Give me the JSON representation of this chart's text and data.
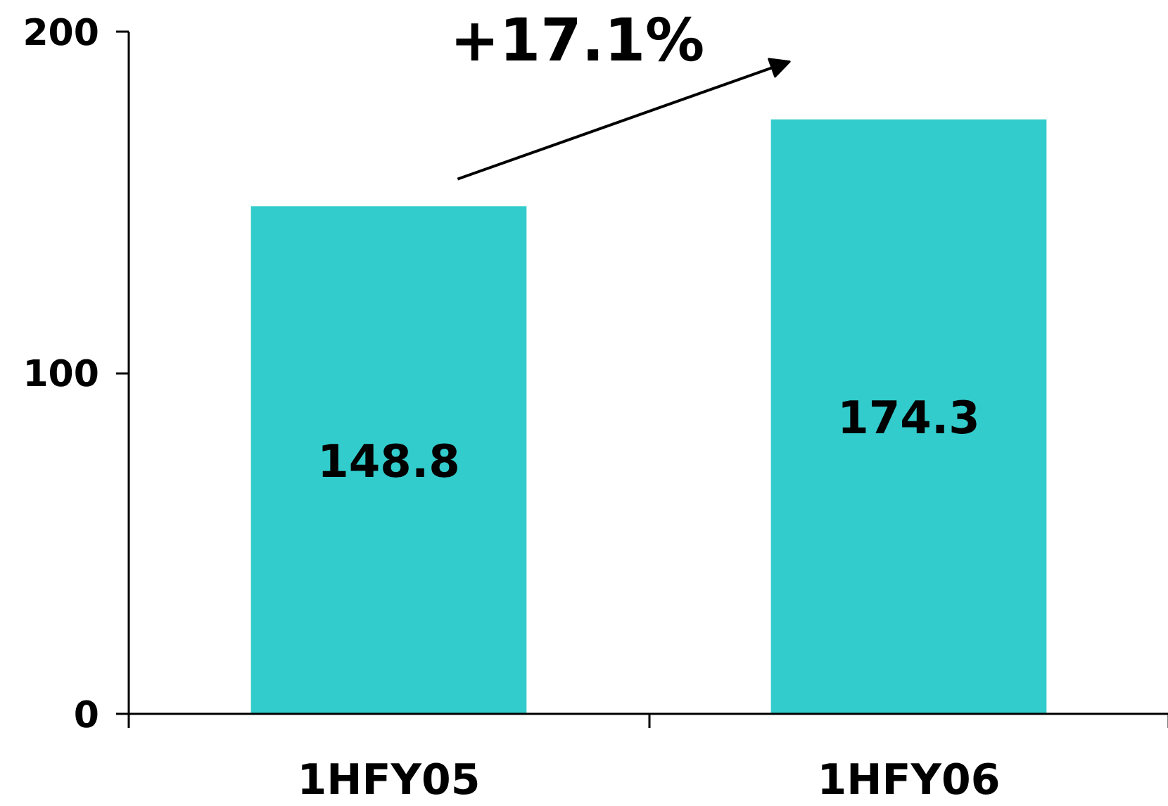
{
  "chart_data": {
    "type": "bar",
    "categories": [
      "1HFY05",
      "1HFY06"
    ],
    "values": [
      148.8,
      174.3
    ],
    "color": "#33cccc",
    "ylim": [
      0,
      200
    ],
    "yticks": [
      0,
      100,
      200
    ],
    "data_labels": true,
    "grid": false,
    "annotations": [
      "+17.1%"
    ]
  }
}
